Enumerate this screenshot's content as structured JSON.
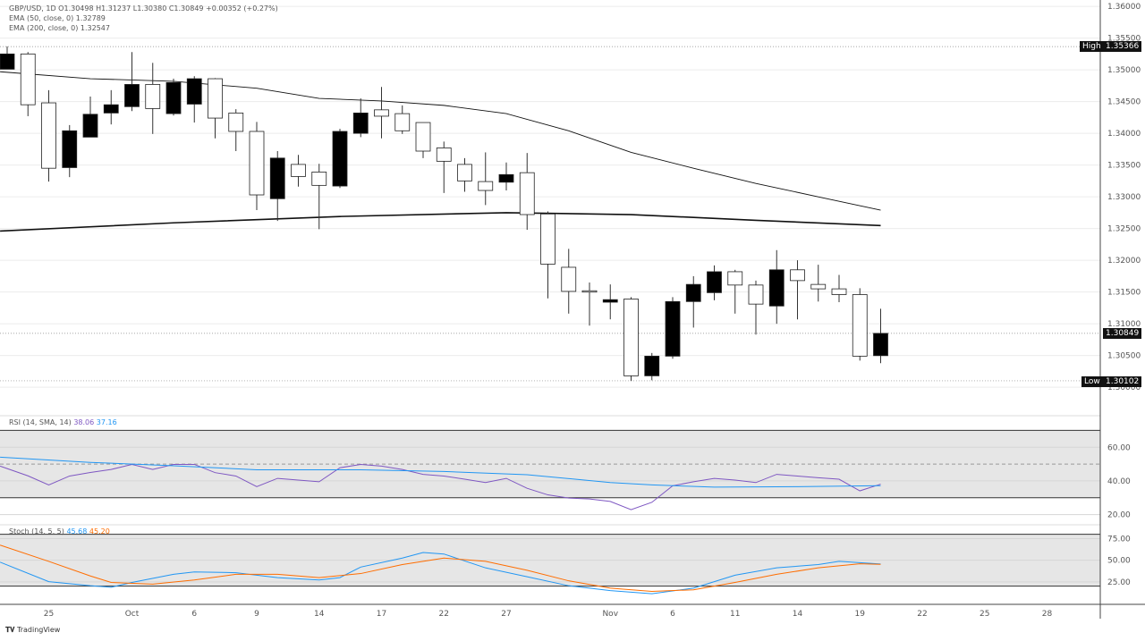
{
  "header": {
    "symbol_line": "GBP/USD, 1D  O1.30498  H1.31237  L1.30380  C1.30849  +0.00352 (+0.27%)",
    "ema50_line": "EMA (50, close, 0)  1.32789",
    "ema200_line": "EMA (200, close, 0)  1.32547"
  },
  "rsi_legend": {
    "label": "RSI (14, SMA, 14)",
    "value": "38.06",
    "sma_value": "37.16"
  },
  "stoch_legend": {
    "label": "Stoch (14, 5, 5)",
    "k_value": "45.68",
    "d_value": "45.20"
  },
  "price_tags": {
    "high_label": "High",
    "high_value": "1.35366",
    "current_value": "1.30849",
    "low_label": "Low",
    "low_value": "1.30102"
  },
  "footer": {
    "brand": "TradingView"
  },
  "colors": {
    "rsi": "#7e57c2",
    "rsi_sma": "#2196f3",
    "stoch_k": "#2196f3",
    "stoch_d": "#ff6d00",
    "band": "#e6e6e6",
    "up_candle": "#000000",
    "down_candle": "#ffffff"
  },
  "chart_data": [
    {
      "type": "candlestick",
      "title": "GBP/USD, 1D",
      "ylim": [
        1.2958,
        1.361
      ],
      "grid": true,
      "y_ticks": [
        "1.36000",
        "1.35500",
        "1.35000",
        "1.34500",
        "1.34000",
        "1.33500",
        "1.33000",
        "1.32500",
        "1.32000",
        "1.31500",
        "1.31000",
        "1.30500",
        "1.30000"
      ],
      "x_ticks": [
        {
          "label": "25",
          "bar": 2
        },
        {
          "label": "Oct",
          "bar": 6
        },
        {
          "label": "6",
          "bar": 9
        },
        {
          "label": "9",
          "bar": 12
        },
        {
          "label": "14",
          "bar": 15
        },
        {
          "label": "17",
          "bar": 18
        },
        {
          "label": "22",
          "bar": 21
        },
        {
          "label": "27",
          "bar": 24
        },
        {
          "label": "Nov",
          "bar": 29
        },
        {
          "label": "6",
          "bar": 32
        },
        {
          "label": "11",
          "bar": 35
        },
        {
          "label": "14",
          "bar": 38
        },
        {
          "label": "19",
          "bar": 41
        },
        {
          "label": "22",
          "bar": 44
        },
        {
          "label": "25",
          "bar": 47
        },
        {
          "label": "28",
          "bar": 50
        }
      ],
      "ohlc": [
        [
          1.3501,
          1.3537,
          1.3501,
          1.3525
        ],
        [
          1.3525,
          1.3528,
          1.3427,
          1.3445
        ],
        [
          1.3448,
          1.3468,
          1.3324,
          1.3345
        ],
        [
          1.3346,
          1.3413,
          1.3331,
          1.3404
        ],
        [
          1.3394,
          1.3458,
          1.3394,
          1.343
        ],
        [
          1.3432,
          1.3468,
          1.3414,
          1.3445
        ],
        [
          1.3442,
          1.3528,
          1.3435,
          1.3477
        ],
        [
          1.3477,
          1.3511,
          1.3399,
          1.3439
        ],
        [
          1.3431,
          1.3486,
          1.3428,
          1.348
        ],
        [
          1.3446,
          1.349,
          1.3417,
          1.3486
        ],
        [
          1.3486,
          1.3487,
          1.3392,
          1.3424
        ],
        [
          1.3432,
          1.3438,
          1.3372,
          1.3403
        ],
        [
          1.3403,
          1.3418,
          1.3279,
          1.3303
        ],
        [
          1.3297,
          1.3372,
          1.3262,
          1.3361
        ],
        [
          1.3351,
          1.3366,
          1.3316,
          1.3332
        ],
        [
          1.3339,
          1.3352,
          1.3249,
          1.3318
        ],
        [
          1.3317,
          1.3407,
          1.3314,
          1.3403
        ],
        [
          1.34,
          1.3455,
          1.3394,
          1.3432
        ],
        [
          1.3437,
          1.3473,
          1.3392,
          1.3427
        ],
        [
          1.3431,
          1.3444,
          1.3399,
          1.3404
        ],
        [
          1.3417,
          1.3417,
          1.3361,
          1.3372
        ],
        [
          1.3377,
          1.3387,
          1.3306,
          1.3356
        ],
        [
          1.3351,
          1.3361,
          1.3308,
          1.3325
        ],
        [
          1.3324,
          1.337,
          1.3287,
          1.331
        ],
        [
          1.3323,
          1.3354,
          1.331,
          1.3335
        ],
        [
          1.3338,
          1.3369,
          1.3248,
          1.3272
        ],
        [
          1.3273,
          1.3277,
          1.314,
          1.3194
        ],
        [
          1.3189,
          1.3218,
          1.3116,
          1.3151
        ],
        [
          1.3152,
          1.3165,
          1.3097,
          1.3151
        ],
        [
          1.3134,
          1.3162,
          1.3107,
          1.3138
        ],
        [
          1.3139,
          1.3142,
          1.301,
          1.3018
        ],
        [
          1.3018,
          1.3054,
          1.3011,
          1.3049
        ],
        [
          1.3049,
          1.3142,
          1.3045,
          1.3135
        ],
        [
          1.3135,
          1.3175,
          1.3094,
          1.3162
        ],
        [
          1.3149,
          1.3192,
          1.3137,
          1.3182
        ],
        [
          1.3182,
          1.3185,
          1.3116,
          1.3161
        ],
        [
          1.3161,
          1.3168,
          1.3083,
          1.3131
        ],
        [
          1.3128,
          1.3216,
          1.31,
          1.3185
        ],
        [
          1.3185,
          1.32,
          1.3107,
          1.3168
        ],
        [
          1.3162,
          1.3193,
          1.3135,
          1.3155
        ],
        [
          1.3155,
          1.3177,
          1.3134,
          1.3146
        ],
        [
          1.3146,
          1.3156,
          1.3042,
          1.3049
        ],
        [
          1.30498,
          1.31237,
          1.3038,
          1.30849
        ]
      ],
      "series": [
        {
          "name": "EMA (50, close, 0)",
          "points": [
            [
              -0.34,
              1.3497
            ],
            [
              4,
              1.3486
            ],
            [
              8,
              1.3482
            ],
            [
              12,
              1.3471
            ],
            [
              15,
              1.3455
            ],
            [
              18,
              1.3451
            ],
            [
              21,
              1.3444
            ],
            [
              24,
              1.3431
            ],
            [
              27,
              1.3404
            ],
            [
              30,
              1.337
            ],
            [
              33,
              1.3345
            ],
            [
              36,
              1.3321
            ],
            [
              39,
              1.33
            ],
            [
              42,
              1.32789
            ]
          ]
        },
        {
          "name": "EMA (200, close, 0)",
          "points": [
            [
              -0.34,
              1.3246
            ],
            [
              8,
              1.3259
            ],
            [
              16,
              1.3269
            ],
            [
              24,
              1.3275
            ],
            [
              30,
              1.3272
            ],
            [
              36,
              1.3263
            ],
            [
              42,
              1.32547
            ]
          ]
        }
      ],
      "high": 1.35366,
      "low": 1.30102,
      "last": 1.30849
    },
    {
      "type": "line",
      "title": "RSI (14, SMA, 14)",
      "ylim": [
        15,
        75
      ],
      "y_ticks": [
        "60.00",
        "40.00",
        "20.00"
      ],
      "bands": [
        70,
        50,
        30
      ],
      "series": [
        {
          "name": "RSI",
          "points": [
            [
              -0.34,
              48.8
            ],
            [
              1,
              43
            ],
            [
              2,
              37.6
            ],
            [
              3,
              42.9
            ],
            [
              4,
              45
            ],
            [
              5,
              46.8
            ],
            [
              6,
              49.8
            ],
            [
              7,
              46.8
            ],
            [
              8,
              49.8
            ],
            [
              9,
              49.8
            ],
            [
              10,
              44.9
            ],
            [
              11,
              42.9
            ],
            [
              12,
              36.6
            ],
            [
              13,
              41.5
            ],
            [
              14,
              40.5
            ],
            [
              15,
              39.5
            ],
            [
              16,
              47.8
            ],
            [
              17,
              49.8
            ],
            [
              18,
              48.8
            ],
            [
              19,
              46.8
            ],
            [
              20,
              43.9
            ],
            [
              21,
              42.9
            ],
            [
              22,
              41.0
            ],
            [
              23,
              39.0
            ],
            [
              24,
              41.5
            ],
            [
              25,
              35.6
            ],
            [
              26,
              31.7
            ],
            [
              27,
              29.8
            ],
            [
              28,
              29.3
            ],
            [
              29,
              27.8
            ],
            [
              30,
              22.9
            ],
            [
              31,
              27.3
            ],
            [
              32,
              37.1
            ],
            [
              33,
              39.5
            ],
            [
              34,
              41.5
            ],
            [
              35,
              40.5
            ],
            [
              36,
              39.0
            ],
            [
              37,
              43.9
            ],
            [
              38,
              42.9
            ],
            [
              39,
              41.9
            ],
            [
              40,
              41.0
            ],
            [
              41,
              34.1
            ],
            [
              42,
              38.06
            ]
          ]
        },
        {
          "name": "SMA",
          "points": [
            [
              -0.34,
              54.1
            ],
            [
              4,
              51
            ],
            [
              8,
              49
            ],
            [
              12,
              46.6
            ],
            [
              17,
              46.6
            ],
            [
              21,
              45.6
            ],
            [
              25,
              43.7
            ],
            [
              29,
              39
            ],
            [
              31,
              37.6
            ],
            [
              34,
              36.3
            ],
            [
              38,
              36.6
            ],
            [
              42,
              37.16
            ]
          ]
        }
      ]
    },
    {
      "type": "line",
      "title": "Stoch (14, 5, 5)",
      "ylim": [
        0,
        90
      ],
      "y_ticks": [
        "75.00",
        "50.00",
        "25.00"
      ],
      "bands": [
        80,
        20
      ],
      "series": [
        {
          "name": "%K",
          "points": [
            [
              -0.34,
              47.8
            ],
            [
              2,
              25.2
            ],
            [
              4,
              20.5
            ],
            [
              5,
              18.7
            ],
            [
              6,
              24.3
            ],
            [
              8,
              33.7
            ],
            [
              9,
              36.5
            ],
            [
              11,
              35.6
            ],
            [
              13,
              29.9
            ],
            [
              15,
              27.1
            ],
            [
              16,
              29.9
            ],
            [
              17,
              42.1
            ],
            [
              19,
              52.5
            ],
            [
              20,
              59.0
            ],
            [
              21,
              57.2
            ],
            [
              23,
              41.2
            ],
            [
              25,
              30.9
            ],
            [
              27,
              20.5
            ],
            [
              29,
              14.9
            ],
            [
              31,
              11.2
            ],
            [
              33,
              17.7
            ],
            [
              35,
              32.7
            ],
            [
              37,
              41.2
            ],
            [
              39,
              45.0
            ],
            [
              40,
              48.7
            ],
            [
              42,
              45.68
            ]
          ]
        },
        {
          "name": "%D",
          "points": [
            [
              -0.34,
              67.5
            ],
            [
              2,
              48.7
            ],
            [
              4,
              31.8
            ],
            [
              5,
              24.3
            ],
            [
              7,
              22.4
            ],
            [
              9,
              27.1
            ],
            [
              11,
              33.7
            ],
            [
              13,
              33.7
            ],
            [
              15,
              29.9
            ],
            [
              17,
              34.6
            ],
            [
              19,
              45.0
            ],
            [
              21,
              52.5
            ],
            [
              23,
              48.7
            ],
            [
              25,
              38.4
            ],
            [
              27,
              26.2
            ],
            [
              29,
              17.7
            ],
            [
              31,
              14.0
            ],
            [
              33,
              15.8
            ],
            [
              35,
              24.3
            ],
            [
              37,
              33.7
            ],
            [
              39,
              41.2
            ],
            [
              41,
              45.9
            ],
            [
              42,
              45.2
            ]
          ]
        }
      ]
    }
  ]
}
